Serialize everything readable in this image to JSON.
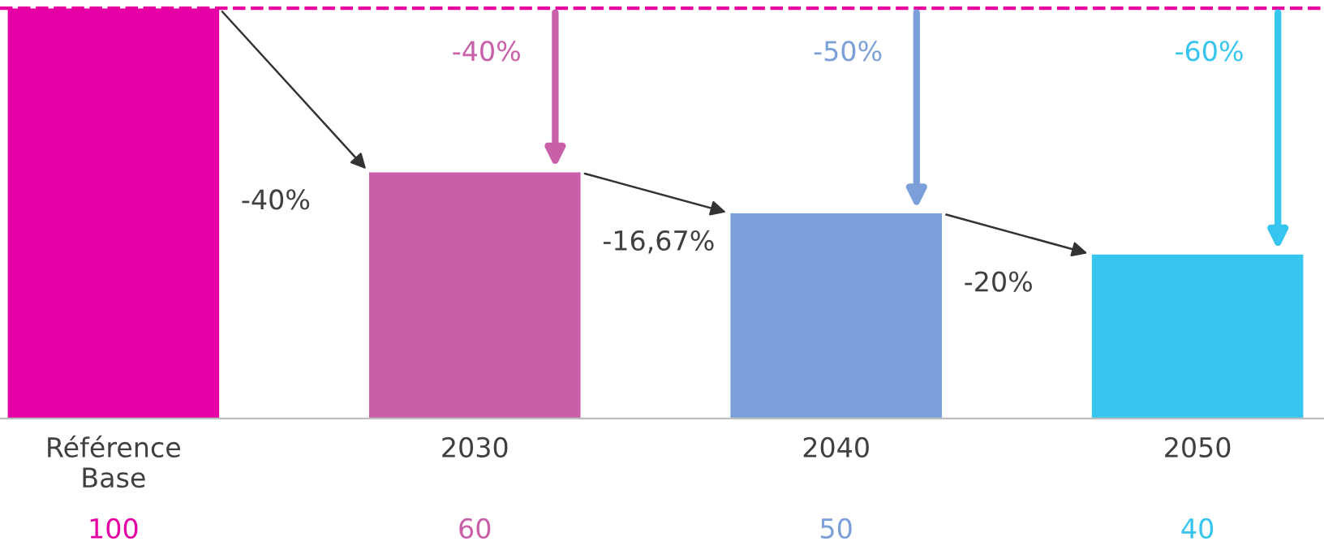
{
  "chart_data": {
    "type": "bar",
    "categories": [
      "Référence\nBase",
      "2030",
      "2040",
      "2050"
    ],
    "values": [
      100,
      60,
      50,
      40
    ],
    "colors": [
      "#e400a4",
      "#c85fa8",
      "#7b9fd8",
      "#35c5ee"
    ],
    "data_labels": true,
    "ref_lines": [
      {
        "axis": "y",
        "value": 100,
        "color": "#e6009e",
        "line_style": "dashed"
      }
    ],
    "annotations": [
      "-40%",
      "-16,67%",
      "-20%",
      "-40%",
      "-50%",
      "-60%"
    ],
    "grid": false,
    "legend": false
  }
}
